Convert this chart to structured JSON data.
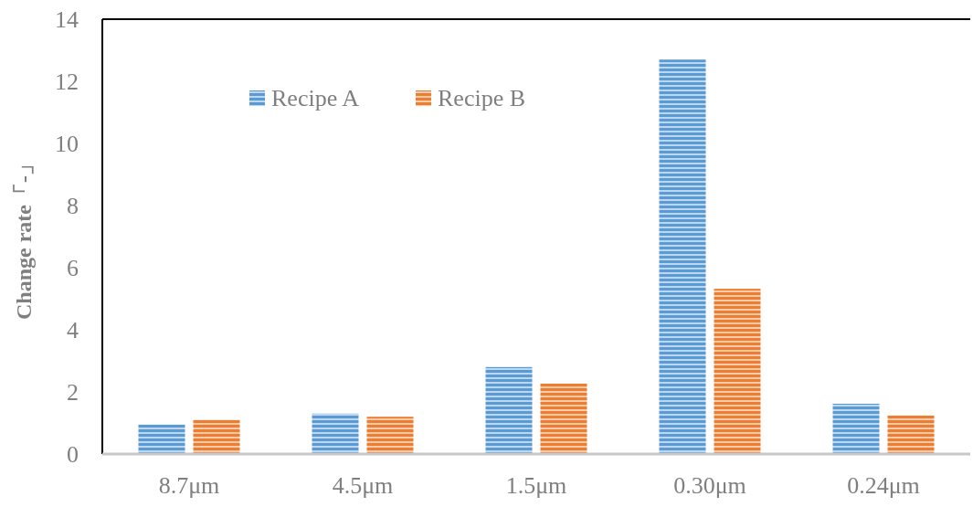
{
  "chart_data": {
    "type": "bar",
    "ylabel": "Change rate「-」",
    "categories": [
      "8.7μm",
      "4.5μm",
      "1.5μm",
      "0.30μm",
      "0.24μm"
    ],
    "series": [
      {
        "name": "Recipe A",
        "color": "#5b9bd5",
        "values": [
          0.95,
          1.3,
          2.8,
          12.7,
          1.62
        ]
      },
      {
        "name": "Recipe B",
        "color": "#ed7d31",
        "values": [
          1.1,
          1.2,
          2.27,
          5.32,
          1.24
        ]
      }
    ],
    "ylim": [
      0,
      14
    ],
    "yticks": [
      0,
      2,
      4,
      6,
      8,
      10,
      12,
      14
    ],
    "legend": "top left"
  }
}
